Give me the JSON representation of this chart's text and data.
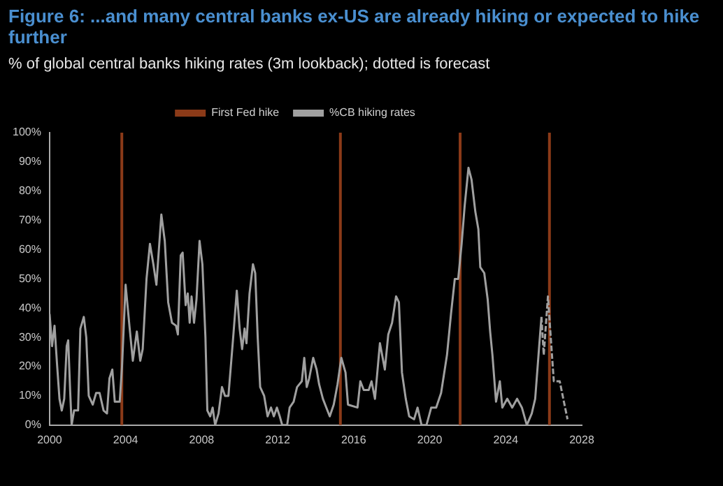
{
  "chart_data": {
    "type": "line",
    "title": "Figure 6: ...and many central banks ex-US are already hiking or expected to hike further",
    "subtitle": "% of global central banks hiking rates (3m lookback); dotted is forecast",
    "xlim": [
      2000,
      2028
    ],
    "xticks": [
      2000,
      2004,
      2008,
      2012,
      2016,
      2020,
      2024,
      2028
    ],
    "ylim": [
      0,
      100
    ],
    "yticks": [
      {
        "value": 0,
        "label": "0%"
      },
      {
        "value": 10,
        "label": "10%"
      },
      {
        "value": 20,
        "label": "20%"
      },
      {
        "value": 30,
        "label": "30%"
      },
      {
        "value": 40,
        "label": "40%"
      },
      {
        "value": 50,
        "label": "50%"
      },
      {
        "value": 60,
        "label": "60%"
      },
      {
        "value": 70,
        "label": "70%"
      },
      {
        "value": 80,
        "label": "80%"
      },
      {
        "value": 90,
        "label": "90%"
      },
      {
        "value": 100,
        "label": "100%"
      }
    ],
    "grid": false,
    "legend": "top",
    "marker": "none",
    "series": [
      {
        "name": "%CB hiking rates",
        "color": "#a0a0a0",
        "line_style": "solid",
        "x": [
          2000.0,
          2000.13,
          2000.26,
          2000.39,
          2000.52,
          2000.64,
          2000.77,
          2000.9,
          2000.98,
          2001.08,
          2001.16,
          2001.29,
          2001.5,
          2001.62,
          2001.8,
          2001.93,
          2002.06,
          2002.27,
          2002.45,
          2002.63,
          2002.84,
          2003.02,
          2003.15,
          2003.3,
          2003.43,
          2003.69,
          2003.81,
          2004.0,
          2004.2,
          2004.38,
          2004.59,
          2004.77,
          2004.9,
          2005.1,
          2005.28,
          2005.46,
          2005.62,
          2005.88,
          2006.06,
          2006.24,
          2006.44,
          2006.65,
          2006.75,
          2006.9,
          2007.0,
          2007.16,
          2007.27,
          2007.37,
          2007.47,
          2007.6,
          2007.73,
          2007.89,
          2008.04,
          2008.2,
          2008.3,
          2008.45,
          2008.58,
          2008.71,
          2008.89,
          2009.07,
          2009.23,
          2009.41,
          2009.66,
          2009.85,
          2010.0,
          2010.13,
          2010.26,
          2010.36,
          2010.52,
          2010.7,
          2010.82,
          2010.95,
          2011.08,
          2011.29,
          2011.47,
          2011.65,
          2011.8,
          2011.96,
          2012.11,
          2012.24,
          2012.5,
          2012.63,
          2012.84,
          2013.02,
          2013.27,
          2013.4,
          2013.53,
          2013.66,
          2013.87,
          2014.05,
          2014.18,
          2014.38,
          2014.56,
          2014.74,
          2014.95,
          2015.15,
          2015.35,
          2015.57,
          2015.7,
          2016.2,
          2016.35,
          2016.53,
          2016.79,
          2016.94,
          2017.12,
          2017.38,
          2017.64,
          2017.82,
          2018.02,
          2018.23,
          2018.38,
          2018.54,
          2018.74,
          2018.92,
          2019.18,
          2019.36,
          2019.57,
          2019.83,
          2020.08,
          2020.34,
          2020.6,
          2020.91,
          2021.12,
          2021.32,
          2021.5,
          2021.68,
          2021.84,
          2022.04,
          2022.2,
          2022.4,
          2022.56,
          2022.66,
          2022.87,
          2023.05,
          2023.18,
          2023.3,
          2023.49,
          2023.69,
          2023.82,
          2024.08,
          2024.34,
          2024.6,
          2024.85,
          2025.11,
          2025.37,
          2025.55,
          2025.76,
          2025.88
        ],
        "values": [
          38,
          27,
          34,
          21,
          9,
          5,
          9,
          27,
          29,
          12,
          0,
          5,
          5,
          33,
          37,
          30,
          10,
          7,
          11,
          11,
          5,
          4,
          16,
          19,
          8,
          8,
          20,
          48,
          34,
          22,
          32,
          22,
          26,
          50,
          62,
          55,
          48,
          72,
          63,
          42,
          35,
          34,
          31,
          58,
          59,
          41,
          45,
          35,
          44,
          35,
          43,
          63,
          55,
          30,
          5,
          3,
          6,
          0,
          4,
          13,
          10,
          10,
          30,
          46,
          33,
          26,
          33,
          28,
          45,
          55,
          52,
          30,
          13,
          10,
          3,
          6,
          3,
          6,
          3,
          0,
          0,
          6,
          8,
          13,
          15,
          23,
          13,
          16,
          23,
          19,
          14,
          9,
          6,
          3,
          7,
          14,
          23,
          18,
          7,
          6,
          15,
          12,
          12,
          15,
          9,
          28,
          19,
          31,
          35,
          44,
          42,
          18,
          9,
          3,
          2,
          6,
          0,
          0,
          6,
          6,
          11,
          24,
          38,
          50,
          50,
          62,
          75,
          88,
          84,
          73,
          67,
          54,
          52,
          43,
          32,
          24,
          8,
          15,
          6,
          9,
          6,
          9,
          6,
          0,
          4,
          9,
          27,
          37
        ]
      },
      {
        "color": "#a0a0a0",
        "line_style": "dashed",
        "x": [
          2025.88,
          2026.0,
          2026.22,
          2026.4,
          2026.53,
          2026.84,
          2027.25
        ],
        "values": [
          37,
          24,
          44,
          27,
          15,
          15,
          2
        ]
      }
    ],
    "ref_lines": [
      {
        "axis": "x",
        "value": 2003.8,
        "label": "First Fed hike",
        "color": "#8b3a18"
      },
      {
        "axis": "x",
        "value": 2015.3,
        "color": "#8b3a18"
      },
      {
        "axis": "x",
        "value": 2021.6,
        "color": "#8b3a18"
      },
      {
        "axis": "x",
        "value": 2026.3,
        "color": "#8b3a18"
      }
    ]
  }
}
